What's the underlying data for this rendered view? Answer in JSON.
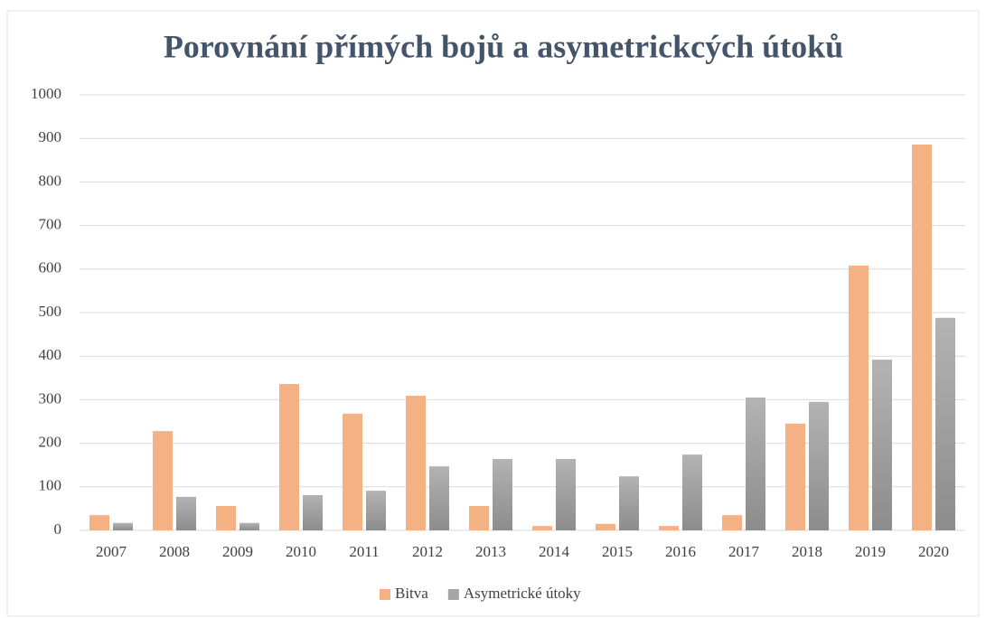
{
  "chart_data": {
    "type": "bar",
    "title": "Porovnání přímých bojů a asymetrickcých útoků",
    "categories": [
      "2007",
      "2008",
      "2009",
      "2010",
      "2011",
      "2012",
      "2013",
      "2014",
      "2015",
      "2016",
      "2017",
      "2018",
      "2019",
      "2020"
    ],
    "series": [
      {
        "name": "Bitva",
        "color": "#f4b183",
        "values": [
          35,
          228,
          56,
          336,
          268,
          309,
          56,
          10,
          15,
          10,
          35,
          245,
          608,
          886
        ]
      },
      {
        "name": "Asymetrické útoky",
        "color": "#a5a5a5",
        "values": [
          17,
          77,
          17,
          81,
          91,
          147,
          164,
          164,
          124,
          174,
          305,
          295,
          392,
          488
        ]
      }
    ],
    "ylim": [
      0,
      1000
    ],
    "yticks": [
      0,
      100,
      200,
      300,
      400,
      500,
      600,
      700,
      800,
      900,
      1000
    ],
    "grid": true,
    "legend": "bottom"
  }
}
